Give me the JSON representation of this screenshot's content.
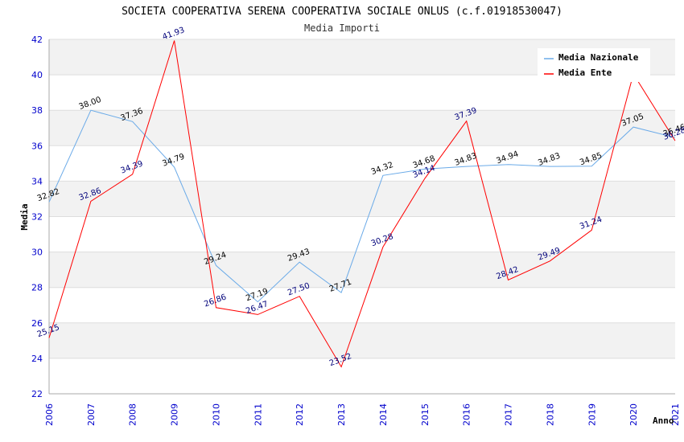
{
  "chart_data": {
    "type": "line",
    "title": "SOCIETA COOPERATIVA SERENA COOPERATIVA SOCIALE ONLUS (c.f.01918530047)",
    "subtitle": "Media Importi",
    "xlabel": "Anno",
    "ylabel": "Media",
    "ylim": [
      22,
      42
    ],
    "yticks": [
      "22",
      "24",
      "26",
      "28",
      "30",
      "32",
      "34",
      "36",
      "38",
      "40",
      "42"
    ],
    "categories": [
      "2006",
      "2007",
      "2008",
      "2009",
      "2010",
      "2011",
      "2012",
      "2013",
      "2014",
      "2015",
      "2016",
      "2017",
      "2018",
      "2019",
      "2020",
      "2021"
    ],
    "legend_position": "top-right",
    "series": [
      {
        "name": "Media Nazionale",
        "color": "#6aaae8",
        "label_color": "#000000",
        "values": [
          32.82,
          38.0,
          37.36,
          34.79,
          29.24,
          27.19,
          29.43,
          27.71,
          34.32,
          34.68,
          34.83,
          34.94,
          34.83,
          34.85,
          37.05,
          36.46
        ],
        "labels": [
          "32.82",
          "38.00",
          "37.36",
          "34.79",
          "29.24",
          "27.19",
          "29.43",
          "27.71",
          "34.32",
          "34.68",
          "34.83",
          "34.94",
          "34.83",
          "34.85",
          "37.05",
          "36.46"
        ]
      },
      {
        "name": "Media Ente",
        "color": "#ff0000",
        "label_color": "#00007a",
        "values": [
          25.15,
          32.86,
          34.39,
          41.93,
          26.86,
          26.47,
          27.5,
          23.52,
          30.28,
          34.14,
          37.39,
          28.42,
          29.49,
          31.24,
          40.05,
          36.28
        ],
        "labels": [
          "25.15",
          "32.86",
          "34.39",
          "41.93",
          "26.86",
          "26.47",
          "27.50",
          "23.52",
          "30.28",
          "34.14",
          "37.39",
          "28.42",
          "29.49",
          "31.24",
          "",
          "36.28"
        ]
      }
    ]
  }
}
